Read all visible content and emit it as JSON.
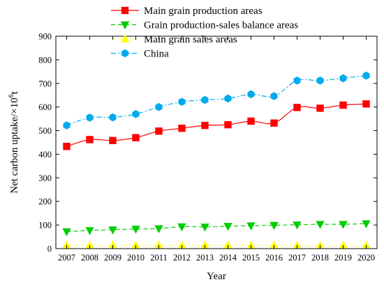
{
  "chart_data": {
    "type": "line",
    "title": "",
    "xlabel": "Year",
    "ylabel_main": "Net carbon uptake/×10",
    "ylabel_sup": "6",
    "ylabel_unit": "t",
    "xlim": [
      2007,
      2020
    ],
    "ylim": [
      0,
      900
    ],
    "yticks": [
      0,
      100,
      200,
      300,
      400,
      500,
      600,
      700,
      800,
      900
    ],
    "x": [
      2007,
      2008,
      2009,
      2010,
      2011,
      2012,
      2013,
      2014,
      2015,
      2016,
      2017,
      2018,
      2019,
      2020
    ],
    "grid": false,
    "legend_position": "top-center",
    "series": [
      {
        "name": "Main grain production areas",
        "color": "#ff0000",
        "marker": "square",
        "line_style": "solid",
        "values": [
          433,
          462,
          458,
          470,
          498,
          510,
          522,
          525,
          540,
          532,
          598,
          595,
          608,
          613
        ]
      },
      {
        "name": "Grain production-sales balance areas",
        "color": "#00cc00",
        "marker": "triangle-down",
        "line_style": "dashed",
        "values": [
          72,
          77,
          80,
          83,
          85,
          93,
          92,
          95,
          97,
          99,
          101,
          103,
          103,
          106
        ]
      },
      {
        "name": "Main grain sales areas",
        "color": "#ffff00",
        "marker": "triangle-up",
        "line_style": "dotted",
        "values": [
          14,
          14,
          14,
          14,
          14,
          14,
          14,
          14,
          14,
          14,
          13,
          13,
          13,
          13
        ]
      },
      {
        "name": "China",
        "color": "#00aaee",
        "marker": "hexagon",
        "line_style": "dashdot",
        "values": [
          522,
          555,
          556,
          570,
          600,
          622,
          630,
          636,
          654,
          646,
          712,
          712,
          722,
          733
        ]
      }
    ]
  }
}
